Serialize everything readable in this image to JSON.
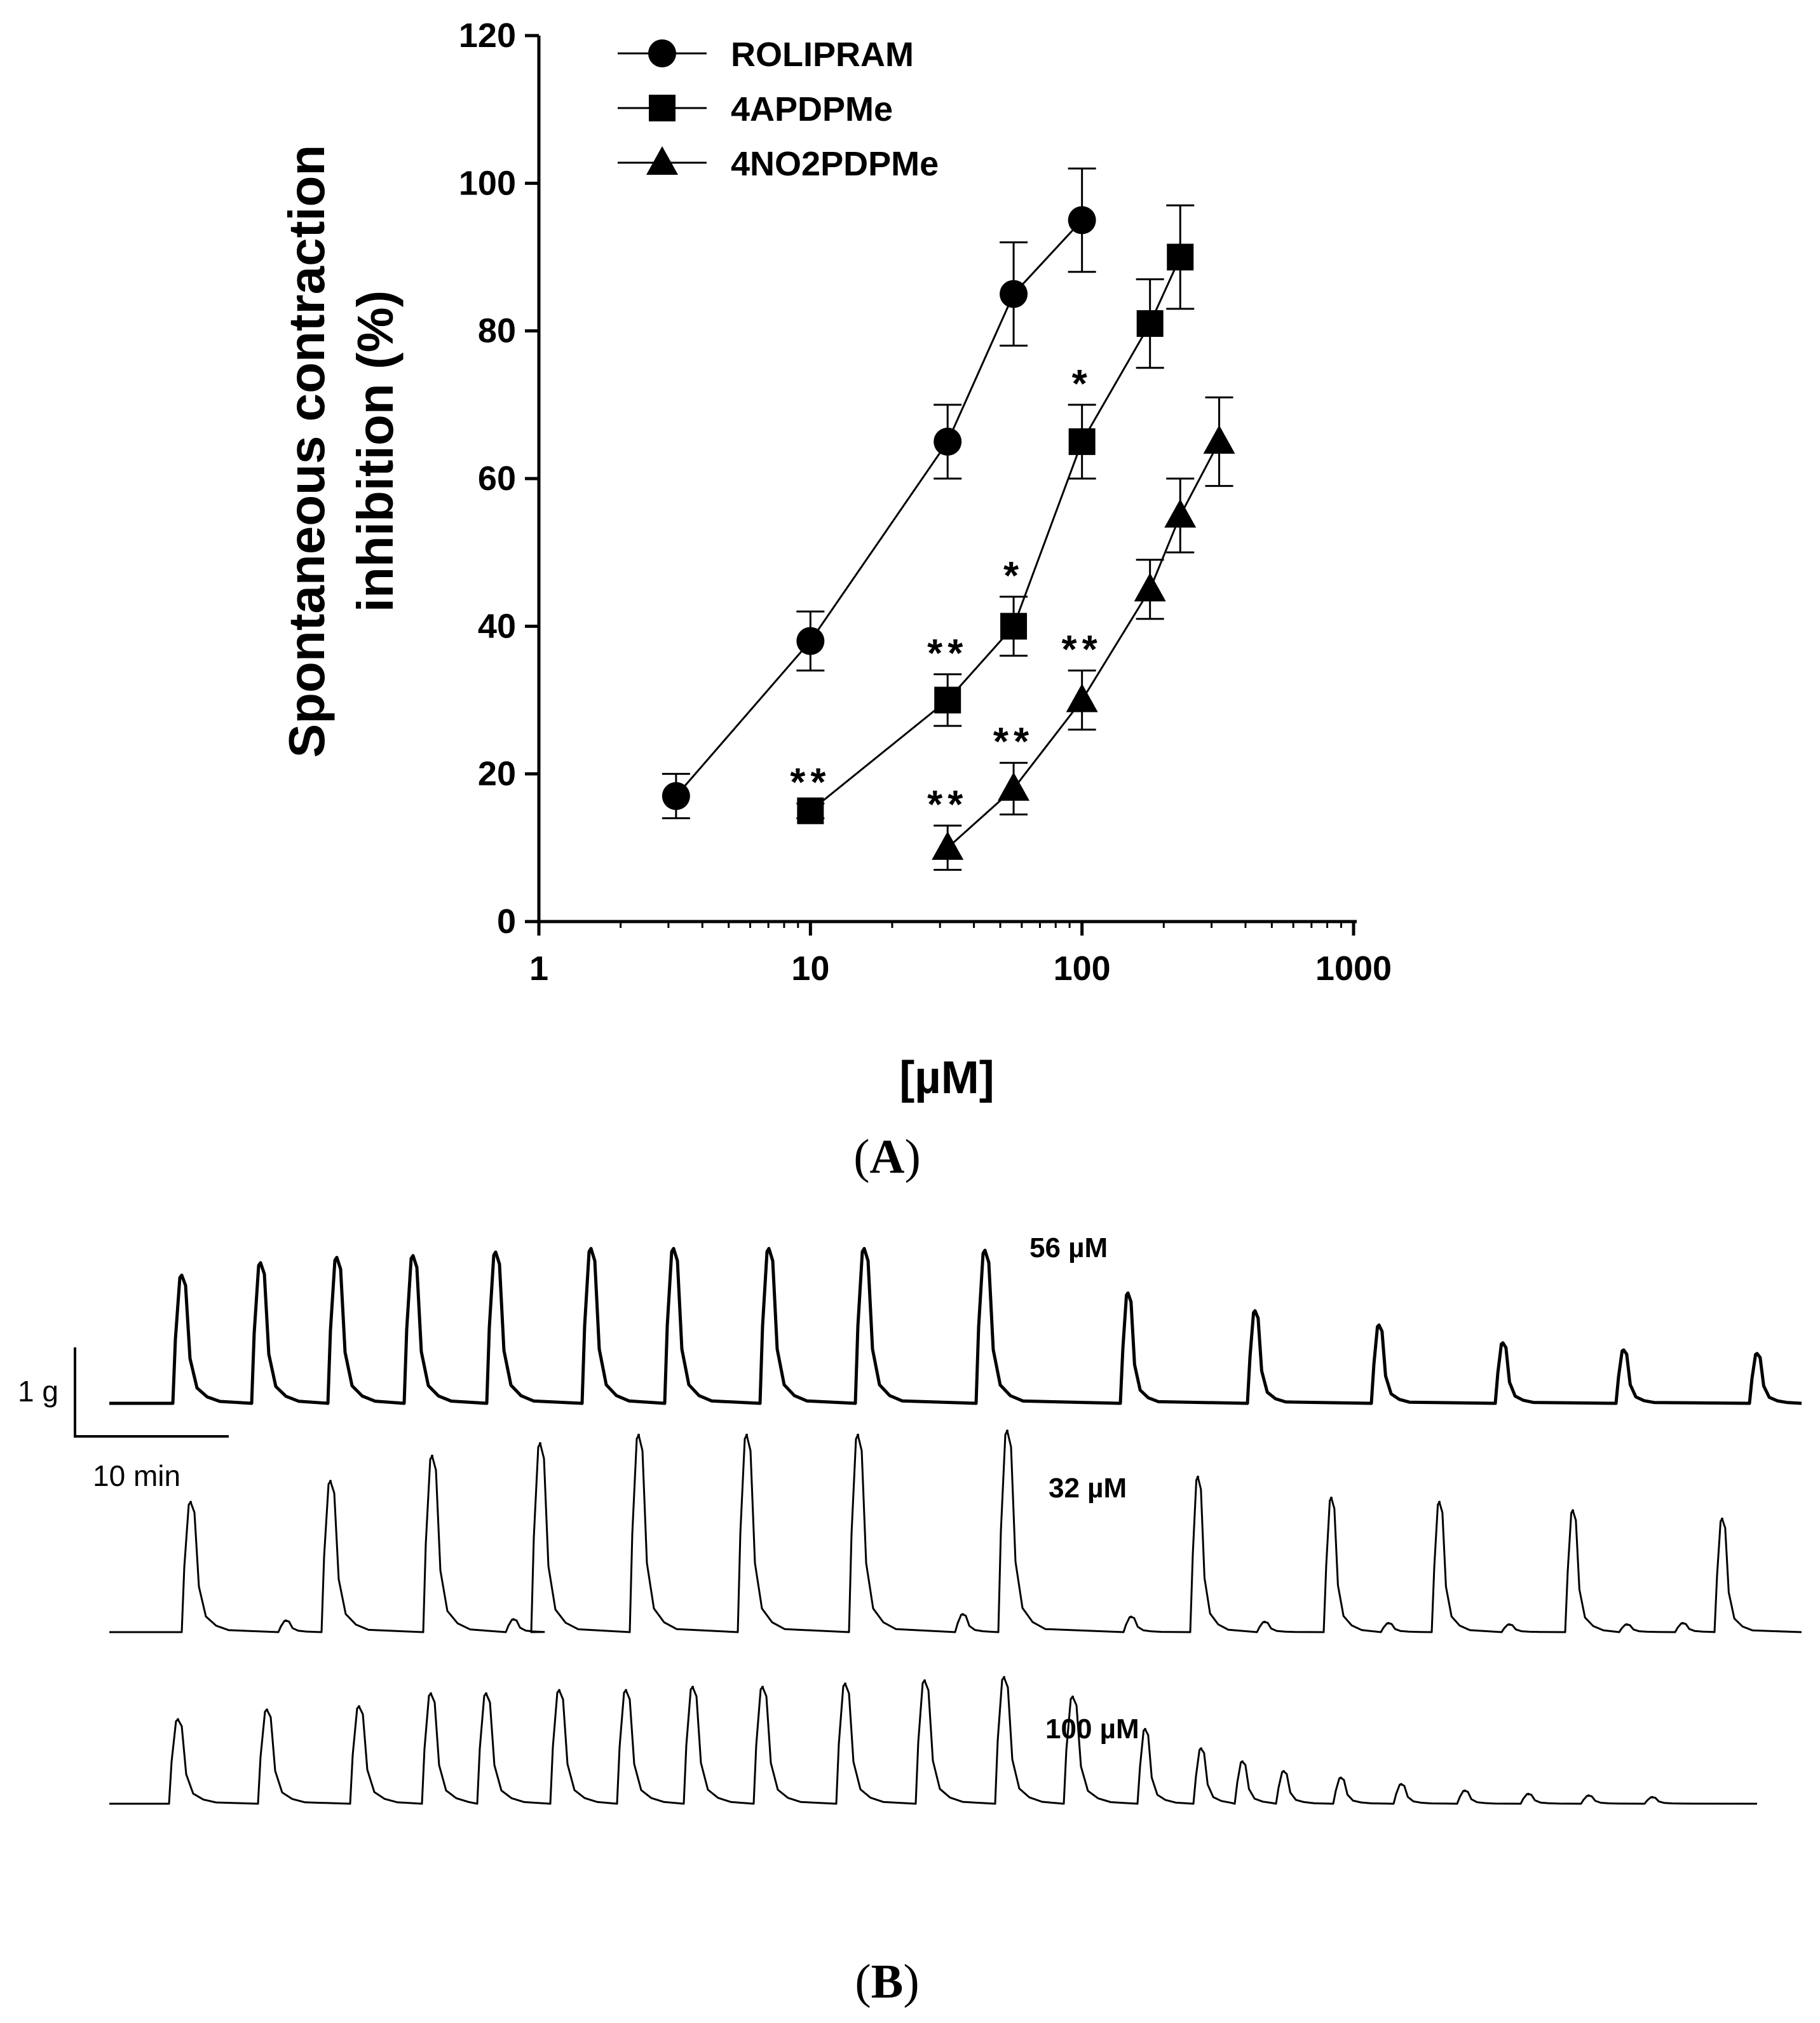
{
  "chart_data": [
    {
      "type": "scatter",
      "panel_label": "A",
      "xlabel": "[µM]",
      "ylabel_line1": "Spontaneous contraction",
      "ylabel_line2": "inhibition (%)",
      "xscale": "log",
      "xlim": [
        1,
        1000
      ],
      "ylim": [
        0,
        120
      ],
      "x_ticks": [
        {
          "value": 1,
          "label": "1"
        },
        {
          "value": 10,
          "label": "10"
        },
        {
          "value": 100,
          "label": "100"
        },
        {
          "value": 1000,
          "label": "1000"
        }
      ],
      "y_ticks": [
        {
          "value": 0,
          "label": "0"
        },
        {
          "value": 20,
          "label": "20"
        },
        {
          "value": 40,
          "label": "40"
        },
        {
          "value": 60,
          "label": "60"
        },
        {
          "value": 80,
          "label": "80"
        },
        {
          "value": 100,
          "label": "100"
        },
        {
          "value": 120,
          "label": "120"
        }
      ],
      "legend_position": "top-left",
      "grid": false,
      "series": [
        {
          "name": "ROLIPRAM",
          "marker": "circle",
          "x": [
            3.2,
            10,
            32,
            56,
            100
          ],
          "y": [
            17,
            38,
            65,
            85,
            95
          ],
          "error": [
            3,
            4,
            5,
            7,
            7
          ],
          "annotations": [
            "",
            "",
            "",
            "",
            ""
          ]
        },
        {
          "name": "4APDPMe",
          "marker": "square",
          "x": [
            10,
            32,
            56,
            100,
            178,
            230
          ],
          "y": [
            15,
            30,
            40,
            65,
            81,
            90
          ],
          "error": [
            1,
            3.5,
            4,
            5,
            6,
            7
          ],
          "annotations": [
            "**",
            "**",
            "*",
            "*",
            "",
            ""
          ]
        },
        {
          "name": "4NO2PDPMe",
          "marker": "triangle",
          "x": [
            32,
            56,
            100,
            178,
            230,
            320
          ],
          "y": [
            10,
            18,
            30,
            45,
            55,
            65
          ],
          "error": [
            3,
            3.5,
            4,
            4,
            5,
            6
          ],
          "annotations": [
            "**",
            "**",
            "**",
            "",
            "",
            ""
          ]
        }
      ]
    },
    {
      "type": "line",
      "panel_label": "B",
      "description": "Isometric tension recordings of spontaneous contractions",
      "scale_bar_force": "1 g",
      "scale_bar_time": "10 min",
      "traces": [
        {
          "label": "56 µM",
          "control_peaks": [
            0.72,
            0.79,
            0.82,
            0.83,
            0.85,
            0.87,
            0.87,
            0.87,
            0.87,
            0.86
          ],
          "treated_peaks": [
            0.62,
            0.52,
            0.44,
            0.34,
            0.3,
            0.28
          ]
        },
        {
          "label": "32 µM",
          "control_peaks": [
            0.62,
            0.72,
            0.84,
            0.9,
            0.94,
            0.94,
            0.94,
            0.96
          ],
          "treated_peaks": [
            0.74,
            0.64,
            0.62,
            0.58,
            0.54
          ]
        },
        {
          "label": "100 µM",
          "control_peaks": [
            0.52,
            0.58,
            0.6,
            0.68,
            0.68,
            0.7,
            0.7,
            0.72,
            0.72,
            0.74,
            0.76,
            0.78,
            0.66
          ],
          "treated_peaks": [
            0.46,
            0.34,
            0.26,
            0.2,
            0.16,
            0.12,
            0.08,
            0.06,
            0.05,
            0.04
          ]
        }
      ]
    }
  ]
}
